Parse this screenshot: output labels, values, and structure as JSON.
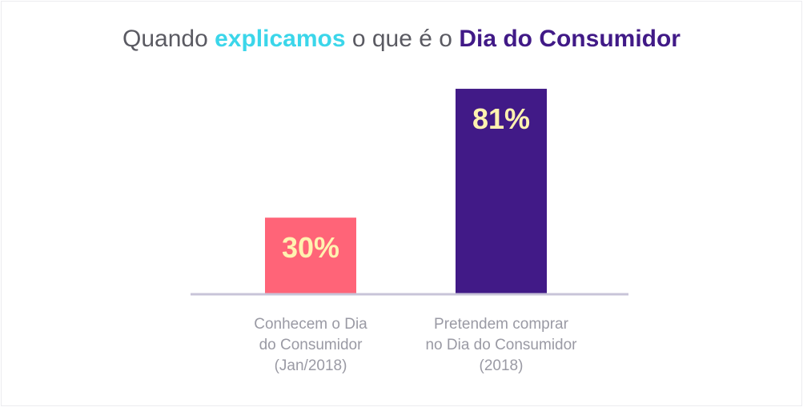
{
  "chart_data": {
    "type": "bar",
    "title": {
      "parts": [
        {
          "text": "Quando ",
          "style": "plain"
        },
        {
          "text": "explicamos",
          "style": "accent1"
        },
        {
          "text": " o que é o ",
          "style": "plain"
        },
        {
          "text": "Dia do Consumidor",
          "style": "accent2"
        }
      ]
    },
    "categories": [
      [
        "Conhecem o Dia",
        "do Consumidor",
        "(Jan/2018)"
      ],
      [
        "Pretendem comprar",
        "no Dia do Consumidor",
        "(2018)"
      ]
    ],
    "values": [
      30,
      81
    ],
    "value_labels": [
      "30%",
      "81%"
    ],
    "unit": "%",
    "ylim": [
      0,
      100
    ],
    "grid": false,
    "legend": "none",
    "colors": {
      "bars": [
        "#ff6478",
        "#411a87"
      ],
      "value_label": "#fff2b0",
      "baseline": "#c8c4d8",
      "title_text": "#5a5a62",
      "title_accent1": "#3bd6ea",
      "title_accent2": "#411a87",
      "category_text": "#9a9aa4"
    }
  }
}
